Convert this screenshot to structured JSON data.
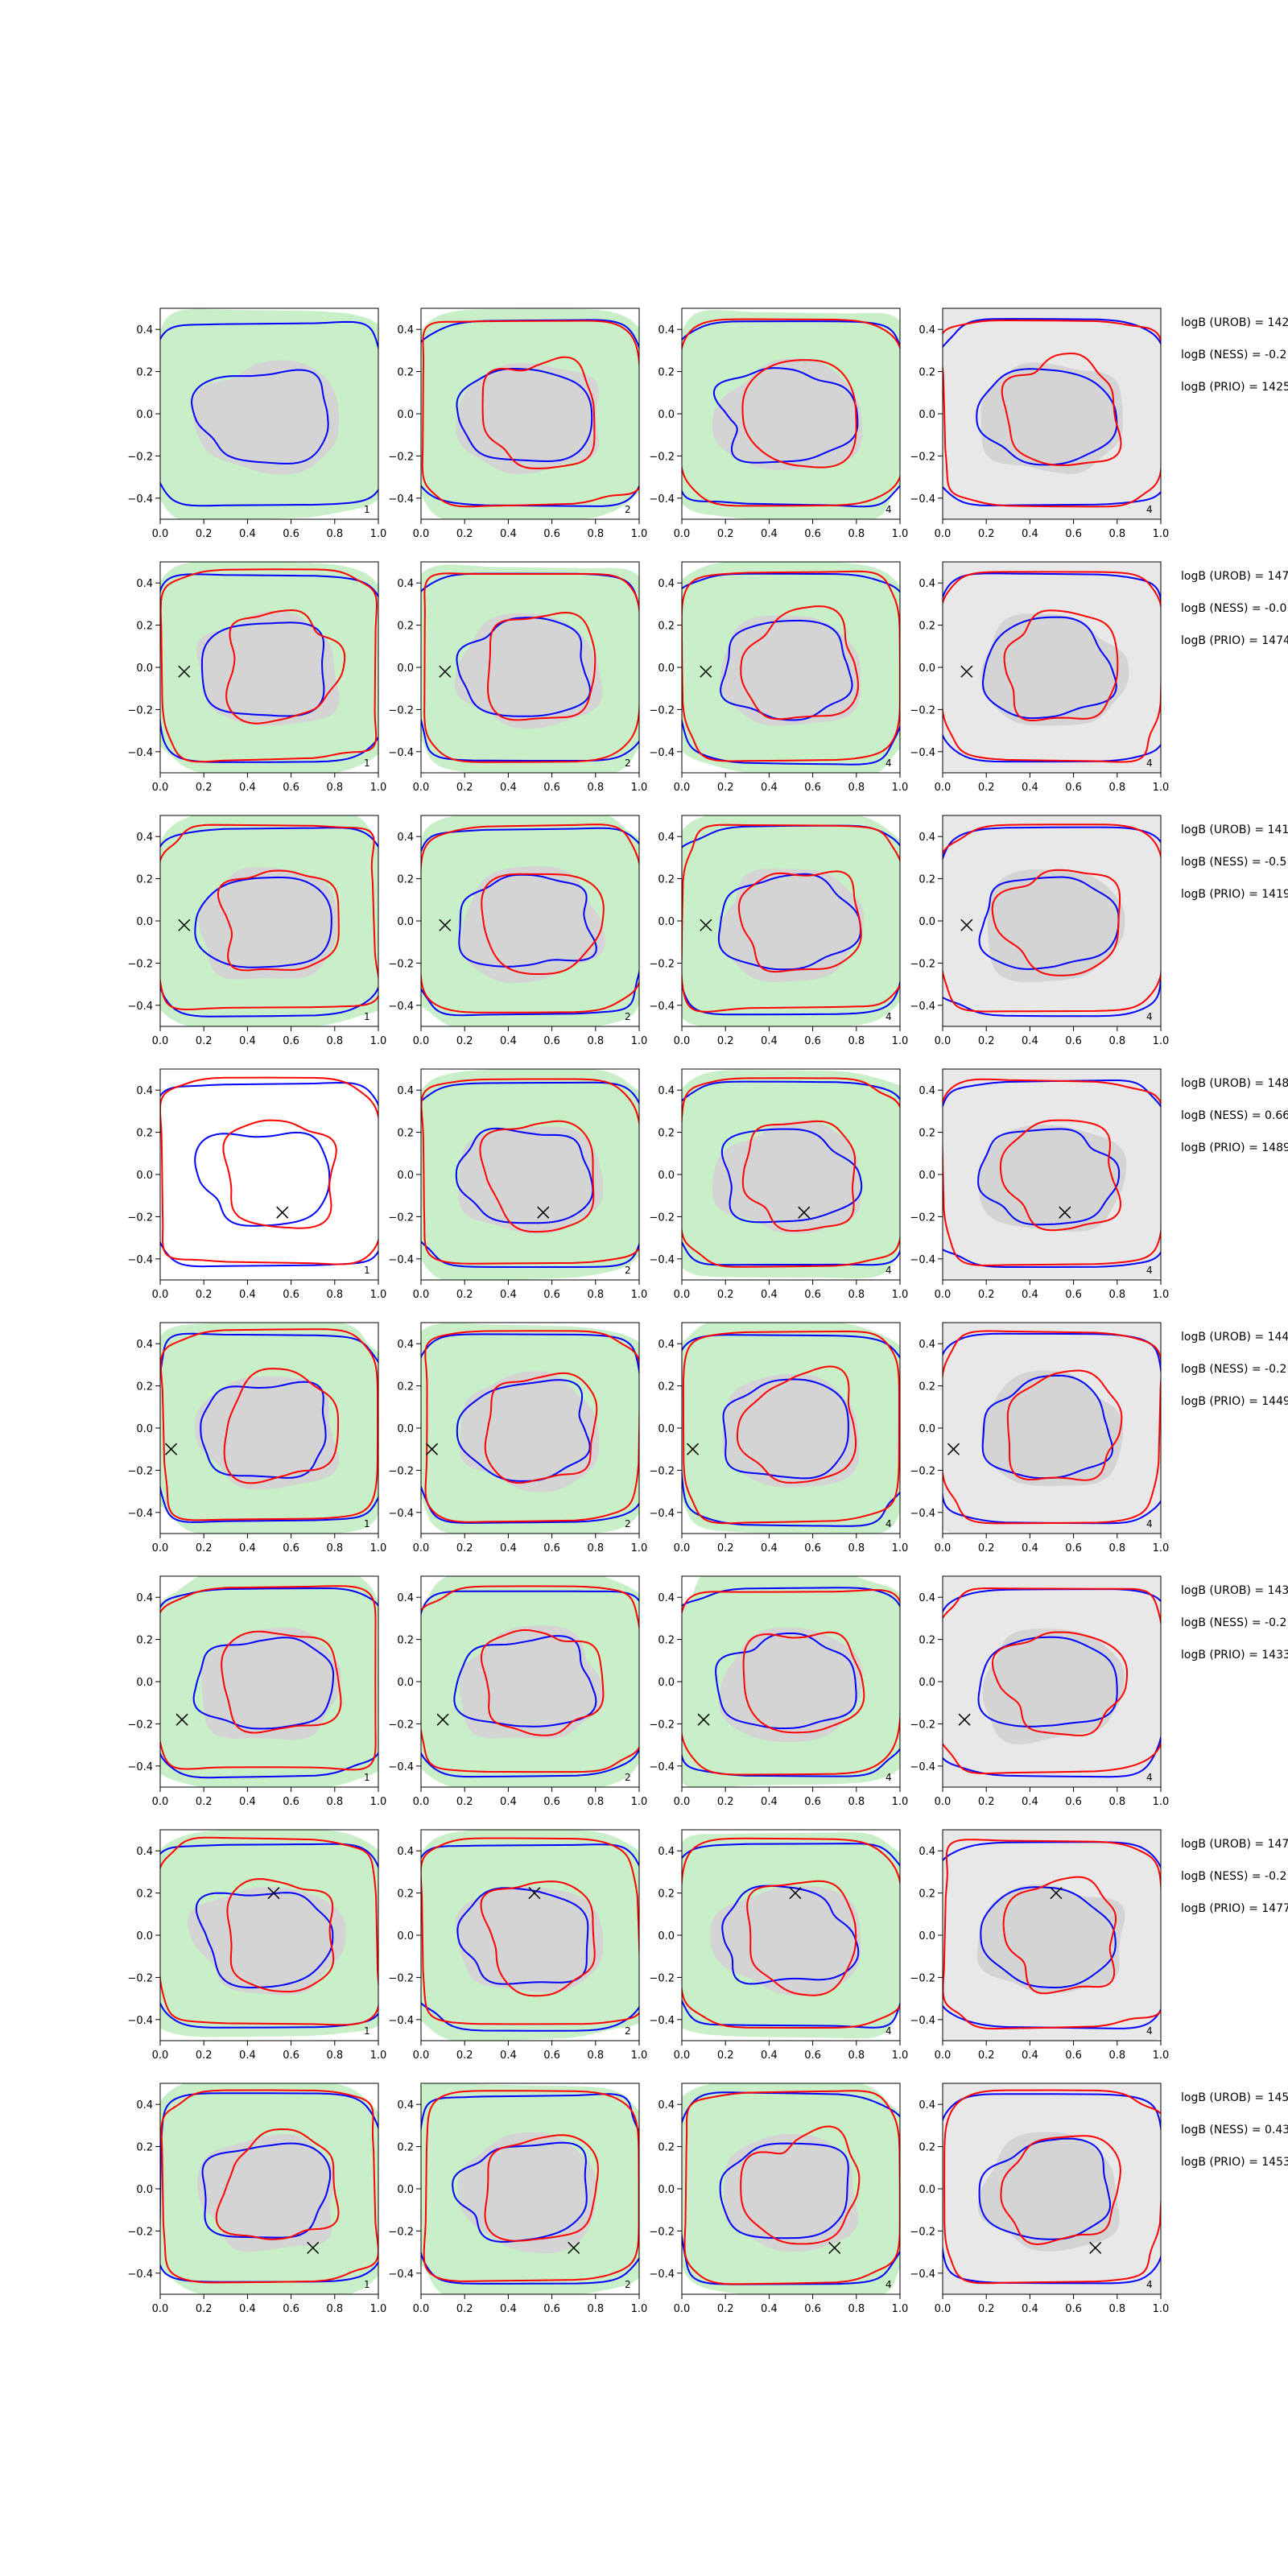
{
  "chart_data": {
    "type": "contour-grid",
    "rows": 8,
    "cols": 4,
    "xlim": [
      0.0,
      1.0
    ],
    "ylim": [
      -0.5,
      0.5
    ],
    "x_ticks": [
      "0.0",
      "0.2",
      "0.4",
      "0.6",
      "0.8",
      "1.0"
    ],
    "y_ticks": [
      "0.4",
      "0.2",
      "0.0",
      "−0.2",
      "−0.4"
    ],
    "panel_ids": [
      "1",
      "2",
      "4",
      "4"
    ],
    "colors": {
      "blue": "#0000ff",
      "red": "#ff0000",
      "green_fill": "#c8efc8",
      "grey_fill": "#d4d4d4",
      "light_grey_fill": "#e8e8e8"
    },
    "markers": [
      null,
      [
        0.11,
        -0.02
      ],
      [
        0.11,
        -0.02
      ],
      [
        0.56,
        -0.18
      ],
      [
        0.05,
        -0.1
      ],
      [
        0.1,
        -0.18
      ],
      [
        0.52,
        0.2
      ],
      [
        0.7,
        -0.28
      ]
    ],
    "annotations": [
      [
        "logB (UROB) = 142",
        "logB (NESS) = -0.2",
        "logB (PRIO) = 1425"
      ],
      [
        "logB (UROB) = 147",
        "logB (NESS) = -0.0",
        "logB (PRIO) = 1474"
      ],
      [
        "logB (UROB) = 141",
        "logB (NESS) = -0.5",
        "logB (PRIO) = 1419"
      ],
      [
        "logB (UROB) = 148",
        "logB (NESS) = 0.66",
        "logB (PRIO) = 1489"
      ],
      [
        "logB (UROB) = 144",
        "logB (NESS) = -0.2",
        "logB (PRIO) = 1449"
      ],
      [
        "logB (UROB) = 143",
        "logB (NESS) = -0.2",
        "logB (PRIO) = 1433"
      ],
      [
        "logB (UROB) = 147",
        "logB (NESS) = -0.2",
        "logB (PRIO) = 1477"
      ],
      [
        "logB (UROB) = 145",
        "logB (NESS) = 0.43",
        "logB (PRIO) = 1453"
      ]
    ]
  }
}
